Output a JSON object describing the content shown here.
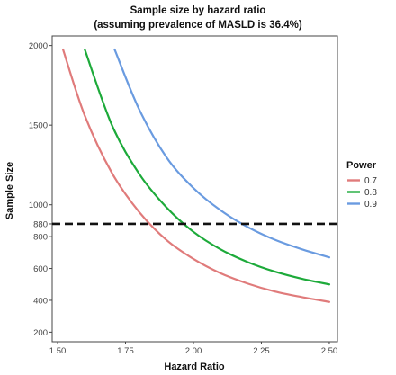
{
  "chart_data": {
    "type": "line",
    "title": "Sample size by hazard ratio",
    "subtitle": "(assuming prevalence of MASLD is 36.4%)",
    "xlabel": "Hazard Ratio",
    "ylabel": "Sample Size",
    "xlim": [
      1.48,
      2.53
    ],
    "ylim": [
      140,
      2060
    ],
    "x_ticks": [
      1.5,
      1.75,
      2.0,
      2.25,
      2.5
    ],
    "x_tick_labels": [
      "1.50",
      "1.75",
      "2.00",
      "2.25",
      "2.50"
    ],
    "y_ticks": [
      200,
      400,
      600,
      800,
      880,
      1000,
      1500,
      2000
    ],
    "y_tick_labels": [
      "200",
      "400",
      "600",
      "800",
      "880",
      "1000",
      "1500",
      "2000"
    ],
    "grid": false,
    "legend": {
      "title": "Power",
      "position": "right"
    },
    "reference_line": {
      "y": 880,
      "style": "dashed",
      "color": "#111111"
    },
    "series": [
      {
        "name": "0.7",
        "color": "#E07B7B",
        "x": [
          1.52,
          1.6,
          1.7,
          1.8,
          1.9,
          2.0,
          2.1,
          2.2,
          2.3,
          2.4,
          2.5
        ],
        "y": [
          1975,
          1560,
          1200,
          955,
          780,
          660,
          570,
          505,
          455,
          420,
          390
        ]
      },
      {
        "name": "0.8",
        "color": "#1DAA3A",
        "x": [
          1.6,
          1.7,
          1.8,
          1.9,
          2.0,
          2.1,
          2.2,
          2.3,
          2.4,
          2.5
        ],
        "y": [
          1975,
          1500,
          1195,
          985,
          830,
          720,
          640,
          580,
          535,
          500
        ]
      },
      {
        "name": "0.9",
        "color": "#6A9BE0",
        "x": [
          1.71,
          1.8,
          1.9,
          2.0,
          2.1,
          2.2,
          2.3,
          2.4,
          2.5
        ],
        "y": [
          1975,
          1600,
          1300,
          1105,
          965,
          860,
          780,
          720,
          670
        ]
      }
    ]
  }
}
